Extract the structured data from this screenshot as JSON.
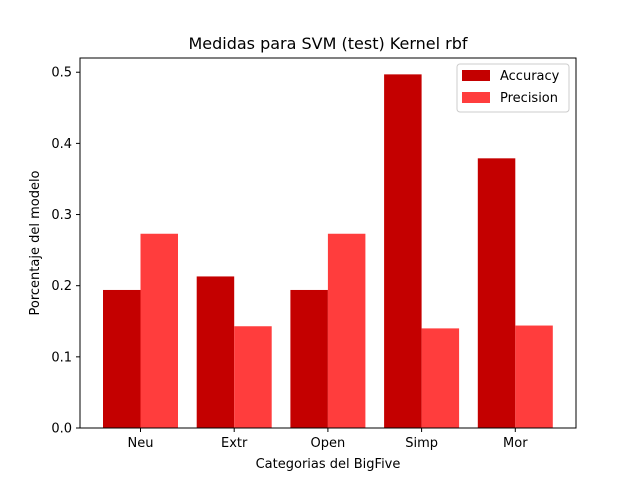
{
  "chart_data": {
    "type": "bar",
    "title": "Medidas para SVM (test) Kernel rbf",
    "xlabel": "Categorias del BigFive",
    "ylabel": "Porcentaje del modelo",
    "categories": [
      "Neu",
      "Extr",
      "Open",
      "Simp",
      "Mor"
    ],
    "series": [
      {
        "name": "Accuracy",
        "color": "#c40000",
        "values": [
          0.194,
          0.213,
          0.194,
          0.497,
          0.379
        ]
      },
      {
        "name": "Precision",
        "color": "#ff3d3d",
        "values": [
          0.273,
          0.143,
          0.273,
          0.14,
          0.144
        ]
      }
    ],
    "ylim": [
      0,
      0.52
    ],
    "yticks": [
      "0.0",
      "0.1",
      "0.2",
      "0.3",
      "0.4",
      "0.5"
    ],
    "grid": false,
    "legend_position": "top-right"
  }
}
